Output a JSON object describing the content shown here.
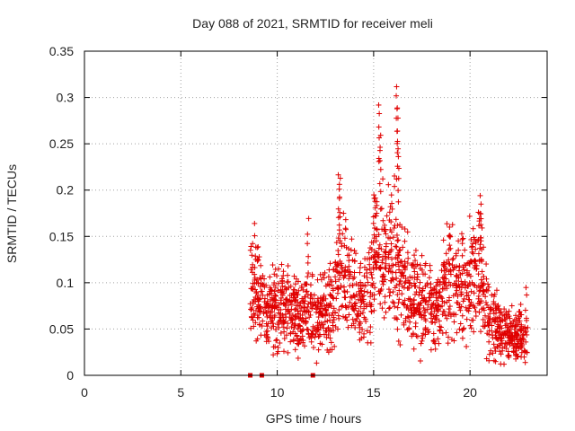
{
  "chart_data": {
    "type": "scatter",
    "title": "Day 088 of 2021, SRMTID for receiver meli",
    "xlabel": "GPS time / hours",
    "ylabel": "SRMTID / TECUs",
    "xlim": [
      0,
      24
    ],
    "ylim": [
      0,
      0.35
    ],
    "grid": true,
    "x_ticks": [
      0,
      5,
      10,
      15,
      20
    ],
    "x_tick_labels": [
      "0",
      "5",
      "10",
      "15",
      "20"
    ],
    "y_ticks": [
      0,
      0.05,
      0.1,
      0.15,
      0.2,
      0.25,
      0.3,
      0.35
    ],
    "y_tick_labels": [
      "0",
      "0.05",
      "0.1",
      "0.15",
      "0.2",
      "0.25",
      "0.3",
      "0.35"
    ],
    "marker": "plus",
    "color": "#e00000",
    "zero_markers": [
      8.6,
      9.2,
      11.85
    ],
    "envelope_hours": [
      8.6,
      9.0,
      9.5,
      10.0,
      10.5,
      11.0,
      11.5,
      12.0,
      12.5,
      13.0,
      13.2,
      13.6,
      14.0,
      14.5,
      14.8,
      15.0,
      15.3,
      15.6,
      16.0,
      16.3,
      16.8,
      17.2,
      17.8,
      18.3,
      18.8,
      19.3,
      19.8,
      20.2,
      20.6,
      21.0,
      21.5,
      22.0,
      22.5,
      23.0
    ],
    "envelope_mean_tecu": [
      0.1,
      0.09,
      0.065,
      0.075,
      0.075,
      0.06,
      0.07,
      0.06,
      0.065,
      0.085,
      0.12,
      0.1,
      0.085,
      0.075,
      0.085,
      0.12,
      0.14,
      0.12,
      0.13,
      0.12,
      0.09,
      0.08,
      0.07,
      0.075,
      0.1,
      0.095,
      0.1,
      0.11,
      0.12,
      0.06,
      0.05,
      0.045,
      0.04,
      0.04
    ],
    "spike_hours": [
      8.85,
      13.2,
      13.25,
      15.05,
      15.15,
      15.3,
      15.35,
      16.2,
      16.25,
      16.3,
      18.9,
      20.55,
      20.6,
      11.6,
      22.9
    ],
    "spike_values_tecu": [
      0.165,
      0.22,
      0.215,
      0.2,
      0.185,
      0.295,
      0.26,
      0.315,
      0.29,
      0.25,
      0.165,
      0.19,
      0.175,
      0.17,
      0.1
    ]
  }
}
